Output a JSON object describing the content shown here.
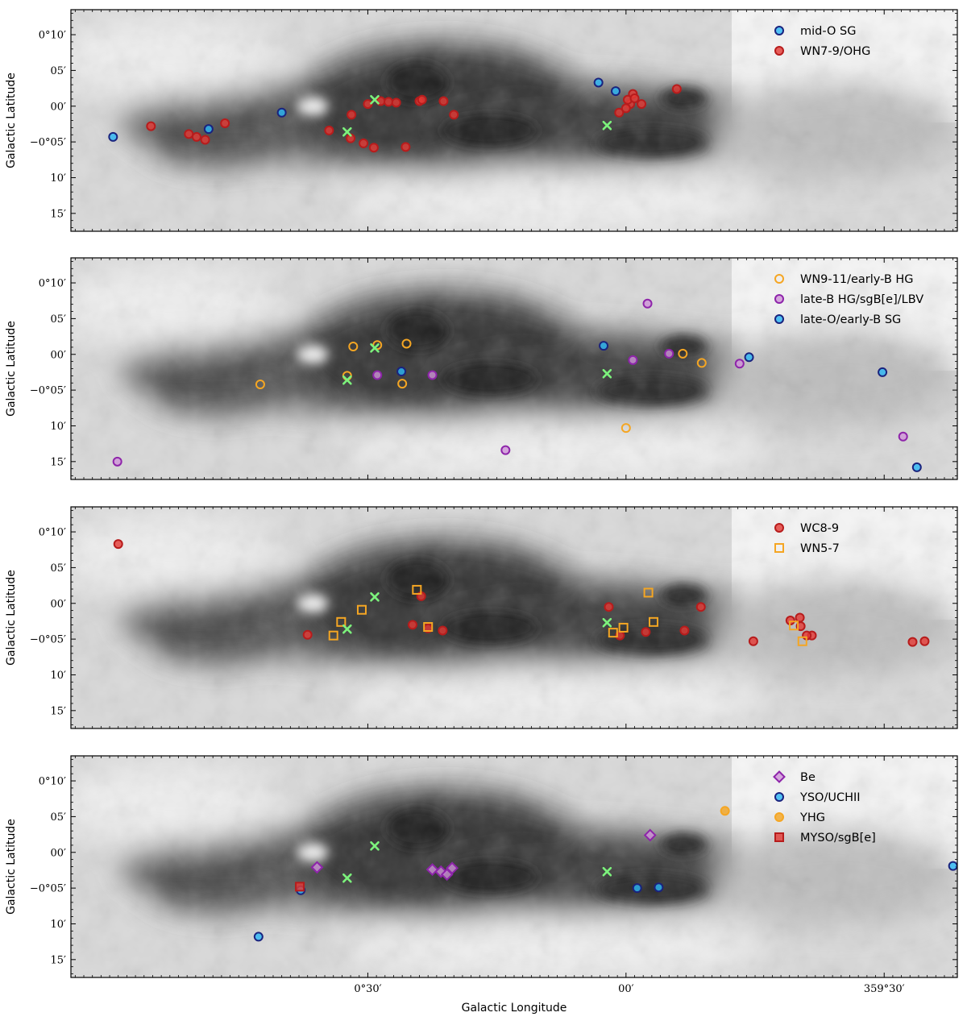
{
  "figure": {
    "xlabel": "Galactic Longitude",
    "ylabel": "Galactic Latitude",
    "x_tick_labels": [
      "0°30′",
      "00′",
      "359°30′",
      "00′"
    ],
    "y_tick_labels": [
      "0°10′",
      "05′",
      "00′",
      "−0°05′",
      "10′",
      "15′"
    ],
    "background": "grayscale infrared image of the Galactic Centre region"
  },
  "chart_data": [
    {
      "type": "scatter",
      "x_axis": "Galactic longitude offset from l=0 (arcmin)",
      "y_axis": "Galactic latitude (arcmin)",
      "xlim": [
        64.5,
        -38.5
      ],
      "ylim": [
        -17.5,
        13.5
      ],
      "series": [
        {
          "name": "mid-O SG",
          "marker": "circle",
          "face": "#29b6f6",
          "edge": "#1a237e",
          "x": [
            59.6,
            48.5,
            40.0,
            3.2,
            1.2
          ],
          "y": [
            -4.3,
            -3.2,
            -0.9,
            3.3,
            2.1
          ]
        },
        {
          "name": "WN7-9/OHG",
          "marker": "circle",
          "face": "#e53935",
          "edge": "#b71c1c",
          "x": [
            55.2,
            50.8,
            49.9,
            48.9,
            46.6,
            34.5,
            32.0,
            31.9,
            30.5,
            30.0,
            29.3,
            28.5,
            27.6,
            26.7,
            25.6,
            24.0,
            23.7,
            21.2,
            20.0,
            -0.8,
            -0.5,
            -0.2,
            0.0,
            0.8,
            -1.0,
            -1.8,
            -5.9
          ],
          "y": [
            -2.8,
            -3.9,
            -4.3,
            -4.7,
            -2.4,
            -3.4,
            -4.5,
            -1.2,
            -5.2,
            0.3,
            -5.8,
            0.7,
            0.6,
            0.5,
            -5.7,
            0.7,
            0.9,
            0.7,
            -1.2,
            1.7,
            0.3,
            0.9,
            -0.3,
            -0.9,
            1.1,
            0.3,
            2.4
          ]
        }
      ],
      "green_crosses": {
        "x": [
          29.2,
          32.4,
          2.2
        ],
        "y": [
          0.9,
          -3.6,
          -2.7
        ]
      },
      "legend": {
        "location": "upper right",
        "entries": [
          "mid-O SG",
          "WN7-9/OHG"
        ]
      }
    },
    {
      "type": "scatter",
      "x_axis": "Galactic longitude offset from l=0 (arcmin)",
      "y_axis": "Galactic latitude (arcmin)",
      "xlim": [
        64.5,
        -38.5
      ],
      "ylim": [
        -17.5,
        13.5
      ],
      "series": [
        {
          "name": "WN9-11/early-B HG",
          "marker": "circle",
          "face": "none",
          "edge": "#f5a623",
          "x": [
            31.7,
            28.9,
            25.5,
            42.5,
            32.4,
            26.0,
            0.0,
            -6.6,
            -8.8
          ],
          "y": [
            1.1,
            1.3,
            1.5,
            -4.2,
            -3.0,
            -4.1,
            -10.3,
            0.1,
            -1.2
          ]
        },
        {
          "name": "late-B HG/sgB[e]/LBV",
          "marker": "circle",
          "face": "#ce93d8",
          "edge": "#8e24aa",
          "x": [
            -2.5,
            59.1,
            14.0,
            28.9,
            22.5,
            -5.0,
            -0.8,
            -13.2,
            -32.2
          ],
          "y": [
            7.1,
            -15.0,
            -13.4,
            -2.9,
            -2.9,
            0.1,
            -0.8,
            -1.3,
            -11.5
          ]
        },
        {
          "name": "late-O/early-B SG",
          "marker": "circle",
          "face": "#29b6f6",
          "edge": "#1a237e",
          "x": [
            -14.3,
            -33.8,
            2.6,
            26.1,
            -29.8
          ],
          "y": [
            -0.4,
            -15.8,
            1.2,
            -2.4,
            -2.5
          ]
        }
      ],
      "green_crosses": {
        "x": [
          29.2,
          32.4,
          2.2
        ],
        "y": [
          0.9,
          -3.6,
          -2.7
        ]
      },
      "legend": {
        "location": "upper right",
        "entries": [
          "WN9-11/early-B HG",
          "late-B HG/sgB[e]/LBV",
          "late-O/early-B SG"
        ]
      }
    },
    {
      "type": "scatter",
      "x_axis": "Galactic longitude offset from l=0 (arcmin)",
      "y_axis": "Galactic latitude (arcmin)",
      "xlim": [
        64.5,
        -38.5
      ],
      "ylim": [
        -17.5,
        13.5
      ],
      "series": [
        {
          "name": "WC8-9",
          "marker": "circle",
          "face": "#e53935",
          "edge": "#b71c1c",
          "x": [
            59.0,
            37.0,
            24.8,
            23.8,
            21.3,
            23.0,
            2.0,
            -6.8,
            -8.7,
            -14.8,
            -19.1,
            -20.2,
            -20.3,
            -21.6,
            -21.0,
            -33.3,
            -34.7,
            0.7,
            -2.3
          ],
          "y": [
            8.3,
            -4.4,
            -3.0,
            1.0,
            -3.8,
            -3.5,
            -0.5,
            -3.8,
            -0.5,
            -5.3,
            -2.4,
            -2.0,
            -3.2,
            -4.5,
            -4.5,
            -5.4,
            -5.3,
            -4.5,
            -4.0
          ]
        },
        {
          "name": "WN5-7",
          "marker": "square",
          "face": "none",
          "edge": "#f5a623",
          "x": [
            24.3,
            33.1,
            34.0,
            30.7,
            23.0,
            1.5,
            -2.6,
            0.3,
            -3.2,
            -19.5,
            -20.5
          ],
          "y": [
            1.9,
            -2.6,
            -4.5,
            -0.9,
            -3.3,
            -4.1,
            1.5,
            -3.4,
            -2.6,
            -3.1,
            -5.3
          ]
        }
      ],
      "green_crosses": {
        "x": [
          29.2,
          32.4,
          2.2
        ],
        "y": [
          0.9,
          -3.6,
          -2.7
        ]
      },
      "legend": {
        "location": "upper right",
        "entries": [
          "WC8-9",
          "WN5-7"
        ]
      }
    },
    {
      "type": "scatter",
      "x_axis": "Galactic longitude offset from l=0 (arcmin)",
      "y_axis": "Galactic latitude (arcmin)",
      "xlim": [
        64.5,
        -38.5
      ],
      "ylim": [
        -17.5,
        13.5
      ],
      "series": [
        {
          "name": "Be",
          "marker": "diamond",
          "face": "#ce93d8",
          "edge": "#8e24aa",
          "x": [
            35.9,
            22.5,
            21.5,
            20.8,
            20.2,
            -2.8
          ],
          "y": [
            -2.1,
            -2.4,
            -2.7,
            -3.1,
            -2.2,
            2.4
          ]
        },
        {
          "name": "YSO/UCHII",
          "marker": "circle",
          "face": "#29b6f6",
          "edge": "#1a237e",
          "x": [
            -1.3,
            -3.8,
            37.8,
            42.7,
            -38.0
          ],
          "y": [
            -5.0,
            -4.9,
            -5.3,
            -11.8,
            -1.9
          ]
        },
        {
          "name": "YHG",
          "marker": "circle",
          "face": "#f5a623",
          "edge": "#f5a623",
          "x": [
            -11.5
          ],
          "y": [
            5.8
          ]
        },
        {
          "name": "MYSO/sgB[e]",
          "marker": "square",
          "face": "#e53935",
          "edge": "#b71c1c",
          "x": [
            37.9
          ],
          "y": [
            -4.8
          ]
        }
      ],
      "green_crosses": {
        "x": [
          29.2,
          32.4,
          2.2
        ],
        "y": [
          0.9,
          -3.6,
          -2.7
        ]
      },
      "legend": {
        "location": "upper right",
        "entries": [
          "Be",
          "YSO/UCHII",
          "YHG",
          "MYSO/sgB[e]"
        ]
      }
    }
  ]
}
